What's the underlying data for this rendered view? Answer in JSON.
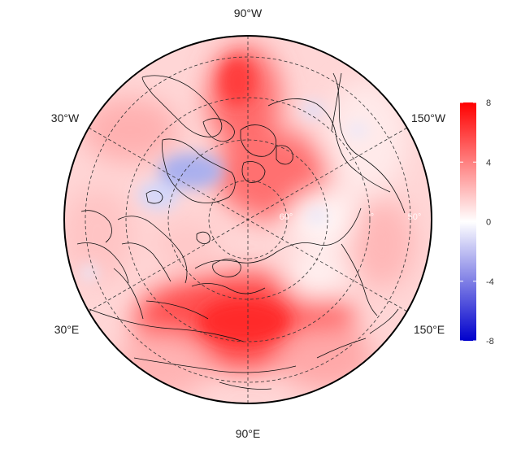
{
  "map": {
    "projection": "north polar stereographic",
    "longitude_labels": {
      "top": "90°W",
      "bottom": "90°E",
      "upper_left": "30°W",
      "upper_right": "150°W",
      "lower_left": "30°E",
      "lower_right": "150°E"
    },
    "latitude_labels": [
      "60°",
      "50°"
    ],
    "gridlines": "dashed",
    "field_description": "temperature anomaly field, mostly positive with a negative patch over Greenland"
  },
  "colorbar": {
    "min": -8,
    "max": 8,
    "ticks": [
      "8",
      "4",
      "0",
      "-4",
      "-8"
    ],
    "colors": {
      "low": "#0000cc",
      "mid": "#ffffff",
      "high": "#ff0000"
    }
  }
}
